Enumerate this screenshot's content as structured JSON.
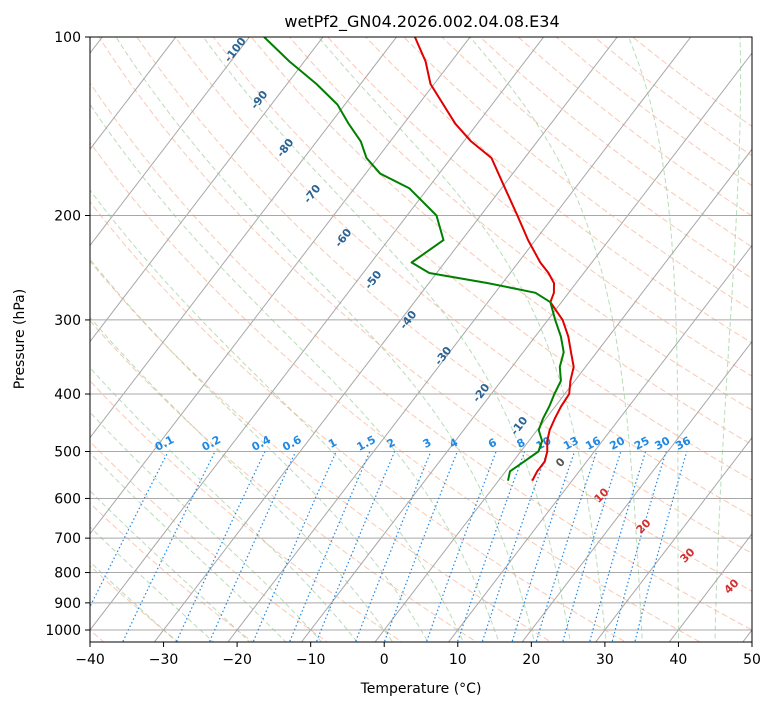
{
  "chart_data": {
    "type": "line",
    "chart_kind": "Skew-T log-P diagram",
    "title": "wetPf2_GN04.2026.002.04.08.E34",
    "xlabel": "Temperature (°C)",
    "ylabel": "Pressure (hPa)",
    "xlim": [
      -40,
      50
    ],
    "ylim": [
      1050,
      100
    ],
    "x_ticks": [
      -40,
      -30,
      -20,
      -10,
      0,
      10,
      20,
      30,
      40,
      50
    ],
    "y_ticks": [
      100,
      200,
      300,
      400,
      500,
      600,
      700,
      800,
      900,
      1000
    ],
    "grid": true,
    "series": [
      {
        "name": "Temperature",
        "color": "#e00000",
        "points": [
          {
            "p": 560,
            "t": 4.6
          },
          {
            "p": 540,
            "t": 4.3
          },
          {
            "p": 520,
            "t": 4.3
          },
          {
            "p": 500,
            "t": 3.6
          },
          {
            "p": 480,
            "t": 2.5
          },
          {
            "p": 460,
            "t": 1.7
          },
          {
            "p": 440,
            "t": 1.2
          },
          {
            "p": 420,
            "t": 0.8
          },
          {
            "p": 400,
            "t": 0.6
          },
          {
            "p": 380,
            "t": -0.6
          },
          {
            "p": 360,
            "t": -1.6
          },
          {
            "p": 340,
            "t": -3.5
          },
          {
            "p": 320,
            "t": -5.5
          },
          {
            "p": 300,
            "t": -8.0
          },
          {
            "p": 280,
            "t": -11.5
          },
          {
            "p": 270,
            "t": -12.0
          },
          {
            "p": 260,
            "t": -13.0
          },
          {
            "p": 250,
            "t": -14.8
          },
          {
            "p": 240,
            "t": -17.0
          },
          {
            "p": 220,
            "t": -21.0
          },
          {
            "p": 200,
            "t": -25.0
          },
          {
            "p": 180,
            "t": -29.5
          },
          {
            "p": 160,
            "t": -34.5
          },
          {
            "p": 150,
            "t": -39.0
          },
          {
            "p": 140,
            "t": -43.0
          },
          {
            "p": 120,
            "t": -50.5
          },
          {
            "p": 110,
            "t": -53.5
          },
          {
            "p": 100,
            "t": -57.5
          }
        ]
      },
      {
        "name": "Dewpoint",
        "color": "#008000",
        "points": [
          {
            "p": 560,
            "t": 1.3
          },
          {
            "p": 540,
            "t": 0.6
          },
          {
            "p": 520,
            "t": 1.5
          },
          {
            "p": 500,
            "t": 2.4
          },
          {
            "p": 480,
            "t": 1.8
          },
          {
            "p": 460,
            "t": 0.2
          },
          {
            "p": 440,
            "t": -0.4
          },
          {
            "p": 420,
            "t": -0.8
          },
          {
            "p": 400,
            "t": -1.4
          },
          {
            "p": 380,
            "t": -1.9
          },
          {
            "p": 360,
            "t": -3.5
          },
          {
            "p": 340,
            "t": -4.5
          },
          {
            "p": 320,
            "t": -6.5
          },
          {
            "p": 300,
            "t": -9.0
          },
          {
            "p": 280,
            "t": -11.5
          },
          {
            "p": 270,
            "t": -14.5
          },
          {
            "p": 260,
            "t": -22.0
          },
          {
            "p": 250,
            "t": -31.0
          },
          {
            "p": 240,
            "t": -34.5
          },
          {
            "p": 220,
            "t": -32.5
          },
          {
            "p": 200,
            "t": -36.0
          },
          {
            "p": 180,
            "t": -42.5
          },
          {
            "p": 170,
            "t": -48.0
          },
          {
            "p": 160,
            "t": -51.5
          },
          {
            "p": 150,
            "t": -54.0
          },
          {
            "p": 140,
            "t": -57.5
          },
          {
            "p": 130,
            "t": -61.0
          },
          {
            "p": 120,
            "t": -66.0
          },
          {
            "p": 110,
            "t": -72.0
          },
          {
            "p": 100,
            "t": -78.0
          }
        ]
      }
    ],
    "dry_adiabat_labels": [
      "-100",
      "-90",
      "-80",
      "-70",
      "-60",
      "-50",
      "-40",
      "-30",
      "-20",
      "-10"
    ],
    "moist_adiabat_labels": [
      "0",
      "10",
      "20",
      "30",
      "40"
    ],
    "mixing_ratio_labels": [
      "0.1",
      "0.2",
      "0.4",
      "0.6",
      "1",
      "1.5",
      "2",
      "3",
      "4",
      "6",
      "8",
      "10",
      "13",
      "16",
      "20",
      "25",
      "30",
      "36"
    ],
    "colors": {
      "isotherm": "#a8a8a8",
      "isobar": "#a8a8a8",
      "dry_adiabat": "#f4a582",
      "moist_adiabat": "#7fbf7f",
      "mixing_ratio": "#1e88e5"
    }
  }
}
